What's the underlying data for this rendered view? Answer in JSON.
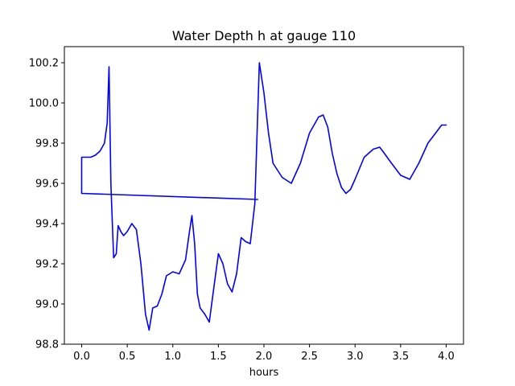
{
  "chart_data": {
    "type": "line",
    "title": "Water Depth h at gauge 110",
    "xlabel": "hours",
    "ylabel": "",
    "xlim": [
      -0.19,
      4.19
    ],
    "ylim": [
      98.8,
      100.28
    ],
    "xticks": [
      0.0,
      0.5,
      1.0,
      1.5,
      2.0,
      2.5,
      3.0,
      3.5,
      4.0
    ],
    "xtick_labels": [
      "0.0",
      "0.5",
      "1.0",
      "1.5",
      "2.0",
      "2.5",
      "3.0",
      "3.5",
      "4.0"
    ],
    "yticks": [
      98.8,
      99.0,
      99.2,
      99.4,
      99.6,
      99.8,
      100.0,
      100.2
    ],
    "ytick_labels": [
      "98.8",
      "99.0",
      "99.2",
      "99.4",
      "99.6",
      "99.8",
      "100.0",
      "100.2"
    ],
    "grid": false,
    "series": [
      {
        "color": "#0000ff",
        "x": [
          1.93,
          0.0,
          0.0,
          0.05,
          0.1,
          0.15,
          0.2,
          0.25,
          0.28,
          0.3,
          0.32,
          0.35,
          0.38,
          0.4,
          0.43,
          0.46,
          0.5,
          0.55,
          0.6,
          0.65,
          0.7,
          0.74,
          0.78,
          0.83,
          0.88,
          0.93,
          1.0,
          1.07,
          1.14,
          1.18,
          1.21,
          1.24,
          1.27,
          1.3,
          1.35,
          1.4,
          1.45,
          1.5,
          1.55,
          1.6,
          1.65,
          1.7,
          1.75,
          1.8,
          1.85,
          1.9,
          1.95,
          2.0,
          2.05,
          2.1,
          2.2,
          2.3,
          2.4,
          2.5,
          2.6,
          2.65,
          2.7,
          2.75,
          2.8,
          2.85,
          2.9,
          2.95,
          3.0,
          3.1,
          3.2,
          3.27,
          3.32,
          3.4,
          3.5,
          3.6,
          3.7,
          3.8,
          3.9,
          3.95,
          4.0
        ],
        "y": [
          99.52,
          99.55,
          99.73,
          99.73,
          99.73,
          99.74,
          99.76,
          99.8,
          99.9,
          100.18,
          99.6,
          99.23,
          99.25,
          99.39,
          99.36,
          99.34,
          99.36,
          99.4,
          99.37,
          99.2,
          98.95,
          98.87,
          98.98,
          98.99,
          99.05,
          99.14,
          99.16,
          99.15,
          99.22,
          99.35,
          99.44,
          99.3,
          99.05,
          98.98,
          98.95,
          98.91,
          99.08,
          99.25,
          99.2,
          99.1,
          99.06,
          99.15,
          99.33,
          99.31,
          99.3,
          99.5,
          100.2,
          100.05,
          99.85,
          99.7,
          99.63,
          99.6,
          99.7,
          99.85,
          99.93,
          99.94,
          99.88,
          99.75,
          99.65,
          99.58,
          99.55,
          99.57,
          99.62,
          99.73,
          99.77,
          99.78,
          99.75,
          99.7,
          99.64,
          99.62,
          99.7,
          99.8,
          99.86,
          99.89,
          99.89
        ]
      }
    ]
  }
}
